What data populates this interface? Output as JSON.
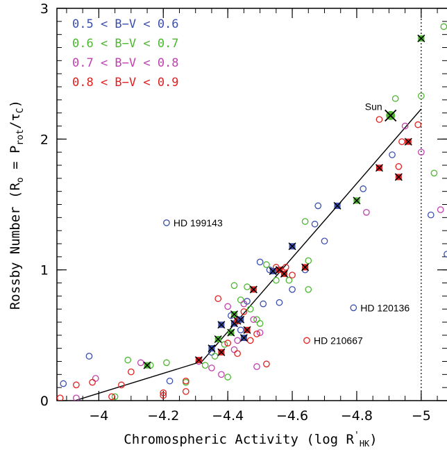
{
  "chart_data": {
    "type": "scatter",
    "title": "",
    "xlabel": "Chromospheric Activity (log R'HK)",
    "xlabel_main": "Chromospheric Activity (log R",
    "xlabel_prime": "'",
    "xlabel_sub": "HK",
    "xlabel_close": ")",
    "ylabel": "Rossby Number (Ro = Prot/τC)",
    "ylabel_parts": [
      "Rossby Number (R",
      "o",
      " = P",
      "rot",
      "/τ",
      "C",
      ")"
    ],
    "xlim": [
      -3.87,
      -5.08
    ],
    "ylim": [
      0,
      3
    ],
    "x_reversed": true,
    "x_ticks": [
      -4,
      -4.2,
      -4.4,
      -4.6,
      -4.8,
      -5
    ],
    "x_tick_labels": [
      "−4",
      "−4.2",
      "−4.4",
      "−4.6",
      "−4.8",
      "−5"
    ],
    "y_ticks": [
      0,
      1,
      2,
      3
    ],
    "y_tick_labels": [
      "0",
      "1",
      "2",
      "3"
    ],
    "x_minor_step": 0.05,
    "y_minor_step": 0.1,
    "grid": false,
    "legend_position": "top-left",
    "legend": [
      {
        "label": "0.5 < B−V < 0.6",
        "color": "#3a4fb0"
      },
      {
        "label": "0.6 < B−V < 0.7",
        "color": "#4cb830"
      },
      {
        "label": "0.7 < B−V < 0.8",
        "color": "#c040b0"
      },
      {
        "label": "0.8 < B−V < 0.9",
        "color": "#e02020"
      }
    ],
    "vertical_line": {
      "x": -5.0,
      "style": "dotted"
    },
    "fit_line": {
      "points": [
        [
          -3.9,
          -0.02
        ],
        [
          -4.32,
          0.3
        ],
        [
          -4.74,
          1.49
        ],
        [
          -5.0,
          2.23
        ]
      ]
    },
    "annotations": [
      {
        "text": "Sun",
        "x": -4.905,
        "y": 2.18,
        "marker": "sun",
        "label_side": "left"
      },
      {
        "text": "HD 199143",
        "x": -4.21,
        "y": 1.36,
        "label_side": "right"
      },
      {
        "text": "HD 120136",
        "x": -4.79,
        "y": 0.71,
        "label_side": "right"
      },
      {
        "text": "HD 210667",
        "x": -4.645,
        "y": 0.46,
        "label_side": "right"
      }
    ],
    "series": [
      {
        "name": "0.5 < B−V < 0.6",
        "color": "#3a4fb0",
        "points": [
          [
            -3.89,
            0.13
          ],
          [
            -3.97,
            0.34
          ],
          [
            -4.22,
            0.15
          ],
          [
            -4.41,
            0.65
          ],
          [
            -4.43,
            0.61
          ],
          [
            -4.46,
            0.76
          ],
          [
            -4.5,
            1.06
          ],
          [
            -4.51,
            0.74
          ],
          [
            -4.53,
            1.0
          ],
          [
            -4.56,
            0.75
          ],
          [
            -4.6,
            0.85
          ],
          [
            -4.64,
            1.0
          ],
          [
            -4.67,
            1.35
          ],
          [
            -4.7,
            1.22
          ],
          [
            -4.68,
            1.49
          ],
          [
            -4.82,
            1.62
          ],
          [
            -4.91,
            1.88
          ],
          [
            -5.03,
            1.42
          ],
          [
            -5.08,
            1.12
          ],
          [
            -4.79,
            0.71
          ],
          [
            -4.21,
            1.36
          ],
          [
            -4.35,
            0.37
          ],
          [
            -4.44,
            0.54
          ]
        ]
      },
      {
        "name": "0.6 < B−V < 0.7",
        "color": "#4cb830",
        "points": [
          [
            -4.05,
            0.03
          ],
          [
            -4.09,
            0.31
          ],
          [
            -4.16,
            0.27
          ],
          [
            -4.21,
            0.29
          ],
          [
            -4.27,
            0.14
          ],
          [
            -4.33,
            0.27
          ],
          [
            -4.36,
            0.34
          ],
          [
            -4.39,
            0.43
          ],
          [
            -4.4,
            0.18
          ],
          [
            -4.42,
            0.88
          ],
          [
            -4.44,
            0.77
          ],
          [
            -4.46,
            0.87
          ],
          [
            -4.47,
            0.7
          ],
          [
            -4.49,
            0.62
          ],
          [
            -4.52,
            1.04
          ],
          [
            -4.59,
            0.92
          ],
          [
            -4.64,
            1.37
          ],
          [
            -4.65,
            1.07
          ],
          [
            -4.65,
            0.85
          ],
          [
            -4.92,
            2.31
          ],
          [
            -5.0,
            2.33
          ],
          [
            -5.04,
            1.74
          ],
          [
            -5.07,
            2.86
          ],
          [
            -4.5,
            0.59
          ],
          [
            -4.55,
            0.92
          ]
        ]
      },
      {
        "name": "0.7 < B−V < 0.8",
        "color": "#c040b0",
        "points": [
          [
            -3.93,
            0.02
          ],
          [
            -3.99,
            0.17
          ],
          [
            -4.13,
            0.29
          ],
          [
            -4.31,
            0.3
          ],
          [
            -4.35,
            0.25
          ],
          [
            -4.38,
            0.2
          ],
          [
            -4.4,
            0.72
          ],
          [
            -4.43,
            0.46
          ],
          [
            -4.45,
            0.74
          ],
          [
            -4.48,
            0.62
          ],
          [
            -4.5,
            0.52
          ],
          [
            -4.83,
            1.44
          ],
          [
            -4.95,
            2.1
          ],
          [
            -5.0,
            1.9
          ],
          [
            -5.06,
            1.46
          ],
          [
            -4.49,
            0.26
          ],
          [
            -4.42,
            0.39
          ]
        ]
      },
      {
        "name": "0.8 < B−V < 0.9",
        "color": "#e02020",
        "points": [
          [
            -3.88,
            0.02
          ],
          [
            -3.93,
            0.12
          ],
          [
            -3.98,
            0.14
          ],
          [
            -4.04,
            0.03
          ],
          [
            -4.07,
            0.12
          ],
          [
            -4.1,
            0.22
          ],
          [
            -4.2,
            0.06
          ],
          [
            -4.2,
            0.04
          ],
          [
            -4.27,
            0.15
          ],
          [
            -4.27,
            0.07
          ],
          [
            -4.37,
            0.78
          ],
          [
            -4.4,
            0.44
          ],
          [
            -4.45,
            0.68
          ],
          [
            -4.49,
            0.51
          ],
          [
            -4.52,
            0.28
          ],
          [
            -4.55,
            1.02
          ],
          [
            -4.58,
            1.02
          ],
          [
            -4.6,
            0.96
          ],
          [
            -4.645,
            0.46
          ],
          [
            -4.87,
            2.15
          ],
          [
            -4.94,
            1.98
          ],
          [
            -4.93,
            1.79
          ],
          [
            -4.99,
            2.11
          ],
          [
            -4.43,
            0.36
          ],
          [
            -4.47,
            0.46
          ]
        ]
      }
    ],
    "crossed_points": [
      {
        "x": -4.15,
        "y": 0.27,
        "color": "#4cb830"
      },
      {
        "x": -4.31,
        "y": 0.31,
        "color": "#e02020"
      },
      {
        "x": -4.35,
        "y": 0.4,
        "color": "#3a4fb0"
      },
      {
        "x": -4.37,
        "y": 0.47,
        "color": "#4cb830"
      },
      {
        "x": -4.38,
        "y": 0.37,
        "color": "#e02020"
      },
      {
        "x": -4.38,
        "y": 0.58,
        "color": "#3a4fb0"
      },
      {
        "x": -4.41,
        "y": 0.52,
        "color": "#4cb830"
      },
      {
        "x": -4.42,
        "y": 0.59,
        "color": "#3a4fb0"
      },
      {
        "x": -4.42,
        "y": 0.66,
        "color": "#4cb830"
      },
      {
        "x": -4.43,
        "y": 0.61,
        "color": "#e02020"
      },
      {
        "x": -4.44,
        "y": 0.62,
        "color": "#3a4fb0"
      },
      {
        "x": -4.45,
        "y": 0.48,
        "color": "#3a4fb0"
      },
      {
        "x": -4.46,
        "y": 0.54,
        "color": "#e02020"
      },
      {
        "x": -4.48,
        "y": 0.85,
        "color": "#e02020"
      },
      {
        "x": -4.54,
        "y": 0.99,
        "color": "#3a4fb0"
      },
      {
        "x": -4.56,
        "y": 1.0,
        "color": "#e02020"
      },
      {
        "x": -4.575,
        "y": 0.97,
        "color": "#e02020"
      },
      {
        "x": -4.6,
        "y": 1.18,
        "color": "#3a4fb0"
      },
      {
        "x": -4.64,
        "y": 1.02,
        "color": "#e02020"
      },
      {
        "x": -4.74,
        "y": 1.49,
        "color": "#3a4fb0"
      },
      {
        "x": -4.8,
        "y": 1.53,
        "color": "#4cb830"
      },
      {
        "x": -4.87,
        "y": 1.78,
        "color": "#e02020"
      },
      {
        "x": -4.93,
        "y": 1.71,
        "color": "#e02020"
      },
      {
        "x": -4.96,
        "y": 1.98,
        "color": "#e02020"
      },
      {
        "x": -5.0,
        "y": 2.77,
        "color": "#4cb830"
      }
    ]
  }
}
